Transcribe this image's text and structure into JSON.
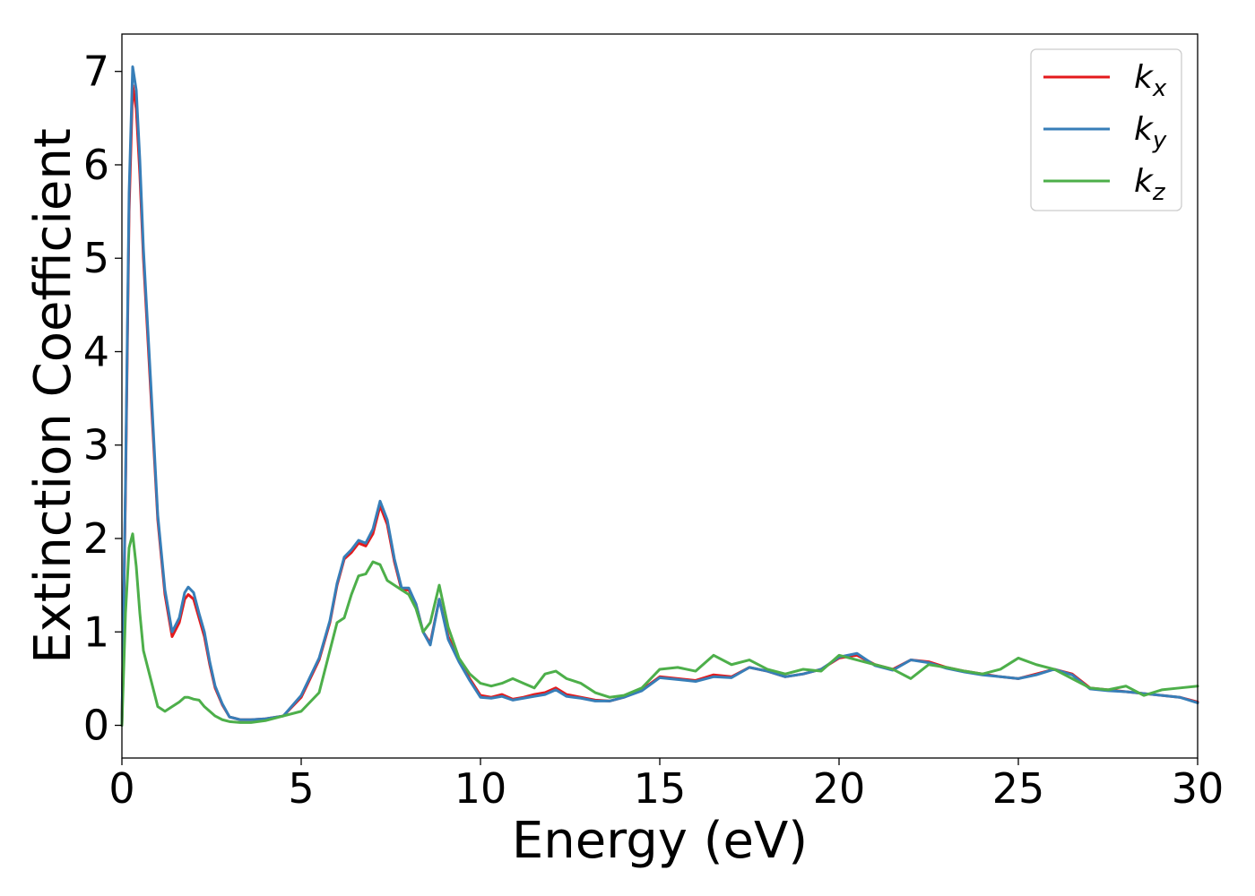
{
  "chart_data": {
    "type": "line",
    "xlabel": "Energy (eV)",
    "ylabel": "Extinction Coefficient",
    "xlim": [
      0,
      30
    ],
    "ylim": [
      -0.35,
      7.4
    ],
    "xticks": [
      "0",
      "5",
      "10",
      "15",
      "20",
      "25",
      "30"
    ],
    "yticks": [
      "0",
      "1",
      "2",
      "3",
      "4",
      "5",
      "6",
      "7"
    ],
    "grid": false,
    "legend_position": "top-right",
    "series": [
      {
        "name": "k_x",
        "legend_base": "k",
        "legend_sub": "x",
        "color": "#e41a1c",
        "x": [
          0,
          0.1,
          0.2,
          0.3,
          0.4,
          0.5,
          0.6,
          0.8,
          1.0,
          1.2,
          1.4,
          1.6,
          1.75,
          1.85,
          2.0,
          2.15,
          2.3,
          2.45,
          2.6,
          2.8,
          3.0,
          3.3,
          3.6,
          4.0,
          4.5,
          5.0,
          5.5,
          5.8,
          6.0,
          6.2,
          6.4,
          6.6,
          6.8,
          7.0,
          7.2,
          7.4,
          7.6,
          7.8,
          8.0,
          8.2,
          8.4,
          8.6,
          8.85,
          9.1,
          9.4,
          9.7,
          10.0,
          10.3,
          10.6,
          10.9,
          11.2,
          11.5,
          11.8,
          12.1,
          12.4,
          12.8,
          13.2,
          13.6,
          14.0,
          14.5,
          15.0,
          15.5,
          16.0,
          16.5,
          17.0,
          17.5,
          18.0,
          18.5,
          19.0,
          19.5,
          20.0,
          20.5,
          21.0,
          21.5,
          22.0,
          22.5,
          23.0,
          23.5,
          24.0,
          24.5,
          25.0,
          25.5,
          26.0,
          26.5,
          27.0,
          27.5,
          28.0,
          28.5,
          29.0,
          29.5,
          30.0
        ],
        "values": [
          0,
          2.5,
          5.5,
          6.85,
          6.6,
          5.9,
          5.0,
          3.6,
          2.2,
          1.4,
          0.95,
          1.1,
          1.35,
          1.4,
          1.35,
          1.15,
          0.95,
          0.65,
          0.4,
          0.22,
          0.09,
          0.06,
          0.06,
          0.07,
          0.1,
          0.3,
          0.7,
          1.1,
          1.5,
          1.78,
          1.85,
          1.95,
          1.92,
          2.05,
          2.35,
          2.15,
          1.75,
          1.45,
          1.45,
          1.3,
          1.0,
          0.88,
          1.35,
          0.95,
          0.7,
          0.5,
          0.32,
          0.3,
          0.33,
          0.28,
          0.3,
          0.33,
          0.35,
          0.4,
          0.33,
          0.3,
          0.27,
          0.26,
          0.3,
          0.38,
          0.52,
          0.5,
          0.48,
          0.54,
          0.52,
          0.62,
          0.58,
          0.52,
          0.55,
          0.6,
          0.72,
          0.75,
          0.65,
          0.6,
          0.7,
          0.68,
          0.62,
          0.58,
          0.55,
          0.52,
          0.5,
          0.55,
          0.6,
          0.55,
          0.4,
          0.38,
          0.36,
          0.34,
          0.32,
          0.3,
          0.25
        ]
      },
      {
        "name": "k_y",
        "legend_base": "k",
        "legend_sub": "y",
        "color": "#377eb8",
        "x": [
          0,
          0.1,
          0.2,
          0.3,
          0.4,
          0.5,
          0.6,
          0.8,
          1.0,
          1.2,
          1.4,
          1.6,
          1.75,
          1.85,
          2.0,
          2.15,
          2.3,
          2.45,
          2.6,
          2.8,
          3.0,
          3.3,
          3.6,
          4.0,
          4.5,
          5.0,
          5.5,
          5.8,
          6.0,
          6.2,
          6.4,
          6.6,
          6.8,
          7.0,
          7.2,
          7.4,
          7.6,
          7.8,
          8.0,
          8.2,
          8.4,
          8.6,
          8.85,
          9.1,
          9.4,
          9.7,
          10.0,
          10.3,
          10.6,
          10.9,
          11.2,
          11.5,
          11.8,
          12.1,
          12.4,
          12.8,
          13.2,
          13.6,
          14.0,
          14.5,
          15.0,
          15.5,
          16.0,
          16.5,
          17.0,
          17.5,
          18.0,
          18.5,
          19.0,
          19.5,
          20.0,
          20.5,
          21.0,
          21.5,
          22.0,
          22.5,
          23.0,
          23.5,
          24.0,
          24.5,
          25.0,
          25.5,
          26.0,
          26.5,
          27.0,
          27.5,
          28.0,
          28.5,
          29.0,
          29.5,
          30.0
        ],
        "values": [
          0,
          2.6,
          5.7,
          7.05,
          6.8,
          6.05,
          5.1,
          3.7,
          2.25,
          1.45,
          1.0,
          1.15,
          1.42,
          1.48,
          1.42,
          1.2,
          1.0,
          0.68,
          0.42,
          0.23,
          0.09,
          0.06,
          0.06,
          0.07,
          0.1,
          0.32,
          0.72,
          1.12,
          1.52,
          1.8,
          1.88,
          1.98,
          1.95,
          2.1,
          2.4,
          2.2,
          1.78,
          1.47,
          1.47,
          1.3,
          1.0,
          0.86,
          1.35,
          0.92,
          0.68,
          0.48,
          0.3,
          0.29,
          0.31,
          0.27,
          0.29,
          0.31,
          0.33,
          0.38,
          0.31,
          0.29,
          0.26,
          0.26,
          0.3,
          0.37,
          0.51,
          0.49,
          0.47,
          0.52,
          0.51,
          0.62,
          0.58,
          0.52,
          0.55,
          0.6,
          0.73,
          0.77,
          0.64,
          0.59,
          0.7,
          0.67,
          0.61,
          0.57,
          0.54,
          0.52,
          0.5,
          0.54,
          0.6,
          0.54,
          0.39,
          0.37,
          0.36,
          0.34,
          0.32,
          0.3,
          0.24
        ]
      },
      {
        "name": "k_z",
        "legend_base": "k",
        "legend_sub": "z",
        "color": "#4daf4a",
        "x": [
          0,
          0.1,
          0.2,
          0.3,
          0.4,
          0.5,
          0.6,
          0.8,
          1.0,
          1.2,
          1.4,
          1.6,
          1.75,
          1.85,
          2.0,
          2.15,
          2.3,
          2.45,
          2.6,
          2.8,
          3.0,
          3.3,
          3.6,
          4.0,
          4.5,
          5.0,
          5.5,
          5.8,
          6.0,
          6.2,
          6.4,
          6.6,
          6.8,
          7.0,
          7.2,
          7.4,
          7.6,
          7.8,
          8.0,
          8.2,
          8.4,
          8.6,
          8.85,
          9.1,
          9.4,
          9.7,
          10.0,
          10.3,
          10.6,
          10.9,
          11.2,
          11.5,
          11.8,
          12.1,
          12.4,
          12.8,
          13.2,
          13.6,
          14.0,
          14.5,
          15.0,
          15.5,
          16.0,
          16.5,
          17.0,
          17.5,
          18.0,
          18.5,
          19.0,
          19.5,
          20.0,
          20.5,
          21.0,
          21.5,
          22.0,
          22.5,
          23.0,
          23.5,
          24.0,
          24.5,
          25.0,
          25.5,
          26.0,
          26.5,
          27.0,
          27.5,
          28.0,
          28.5,
          29.0,
          29.5,
          30.0
        ],
        "values": [
          0,
          1.2,
          1.9,
          2.05,
          1.7,
          1.2,
          0.8,
          0.5,
          0.2,
          0.15,
          0.2,
          0.25,
          0.3,
          0.3,
          0.28,
          0.27,
          0.2,
          0.15,
          0.1,
          0.06,
          0.04,
          0.03,
          0.03,
          0.05,
          0.1,
          0.15,
          0.35,
          0.8,
          1.1,
          1.15,
          1.4,
          1.6,
          1.62,
          1.75,
          1.72,
          1.55,
          1.5,
          1.45,
          1.4,
          1.25,
          1.0,
          1.1,
          1.5,
          1.05,
          0.72,
          0.55,
          0.45,
          0.42,
          0.45,
          0.5,
          0.45,
          0.4,
          0.55,
          0.58,
          0.5,
          0.45,
          0.35,
          0.3,
          0.32,
          0.4,
          0.6,
          0.62,
          0.58,
          0.75,
          0.65,
          0.7,
          0.6,
          0.55,
          0.6,
          0.58,
          0.75,
          0.7,
          0.65,
          0.6,
          0.5,
          0.65,
          0.62,
          0.58,
          0.55,
          0.6,
          0.72,
          0.65,
          0.6,
          0.5,
          0.4,
          0.38,
          0.42,
          0.32,
          0.38,
          0.4,
          0.42
        ]
      }
    ]
  }
}
